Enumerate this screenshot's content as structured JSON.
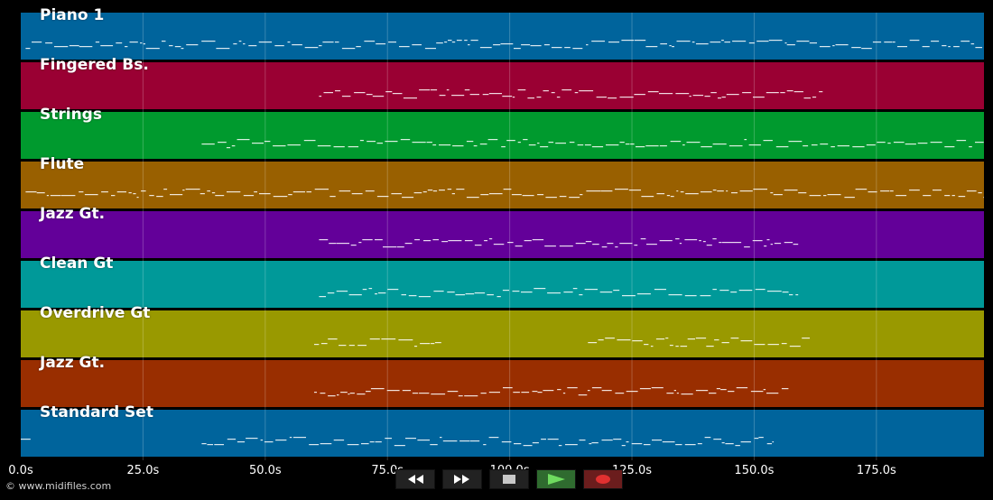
{
  "tracks": [
    {
      "name": "Piano 1",
      "color": "#00649c"
    },
    {
      "name": "Fingered Bs.",
      "color": "#9a0033"
    },
    {
      "name": "Strings",
      "color": "#009a2e"
    },
    {
      "name": "Flute",
      "color": "#996000"
    },
    {
      "name": "Jazz Gt.",
      "color": "#630099"
    },
    {
      "name": "Clean Gt",
      "color": "#009999"
    },
    {
      "name": "Overdrive Gt",
      "color": "#999900"
    },
    {
      "name": "Jazz Gt.",
      "color": "#992e00"
    },
    {
      "name": "Standard Set",
      "color": "#00649c"
    }
  ],
  "timeline": {
    "tick_labels": [
      "0.0s",
      "25.0s",
      "50.0s",
      "75.0s",
      "100.0s",
      "125.0s",
      "150.0s",
      "175.0s"
    ],
    "tick_values": [
      0,
      25,
      50,
      75,
      100,
      125,
      150,
      175
    ],
    "max_seconds": 197
  },
  "copyright": "© www.midifiles.com",
  "transport": {
    "rewind": "rewind-icon",
    "fast_forward": "fast-forward-icon",
    "stop": "stop-icon",
    "play": "play-icon",
    "record": "record-icon"
  }
}
